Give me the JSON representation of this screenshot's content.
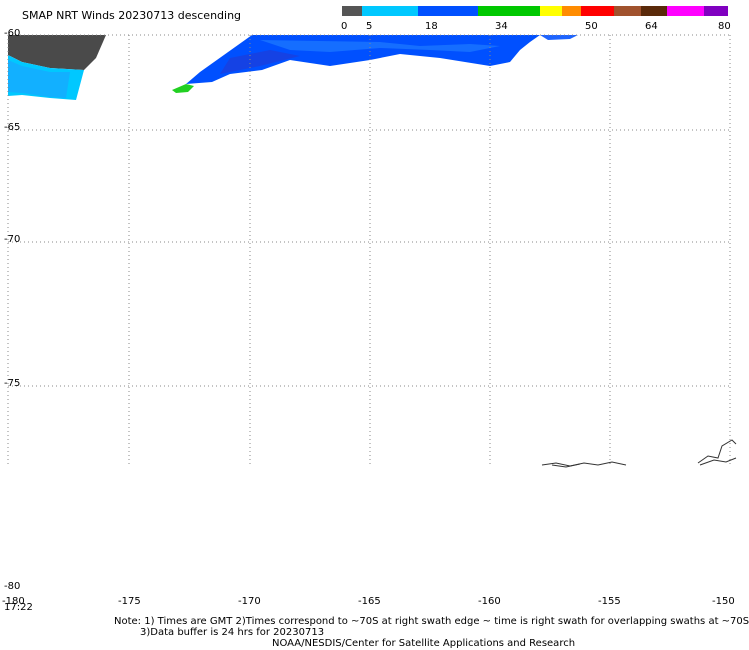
{
  "title": "SMAP NRT Winds  20230713 descending",
  "colorbar": {
    "segments": [
      "#555555",
      "#00c8ff",
      "#0050ff",
      "#00c800",
      "#ffff00",
      "#ff8c00",
      "#ff0000",
      "#a0522d",
      "#5a2a0a",
      "#ff00ff",
      "#8000c0"
    ],
    "ticks": [
      "0",
      "5",
      "18",
      "34",
      "50",
      "64",
      "80"
    ]
  },
  "lat_labels": [
    "-60",
    "-65",
    "-70",
    "-75",
    "-80"
  ],
  "lon_labels": [
    "-180",
    "-175",
    "-170",
    "-165",
    "-160",
    "-155",
    "-150"
  ],
  "time_label": "17:22",
  "notes": {
    "line1": "Note: 1) Times are GMT 2)Times correspond to ~70S at right swath edge ~ time is right swath for overlapping swaths at ~70S",
    "line2": "3)Data buffer is 24 hrs for 20230713",
    "line3": "NOAA/NESDIS/Center for Satellite Applications and Research"
  }
}
